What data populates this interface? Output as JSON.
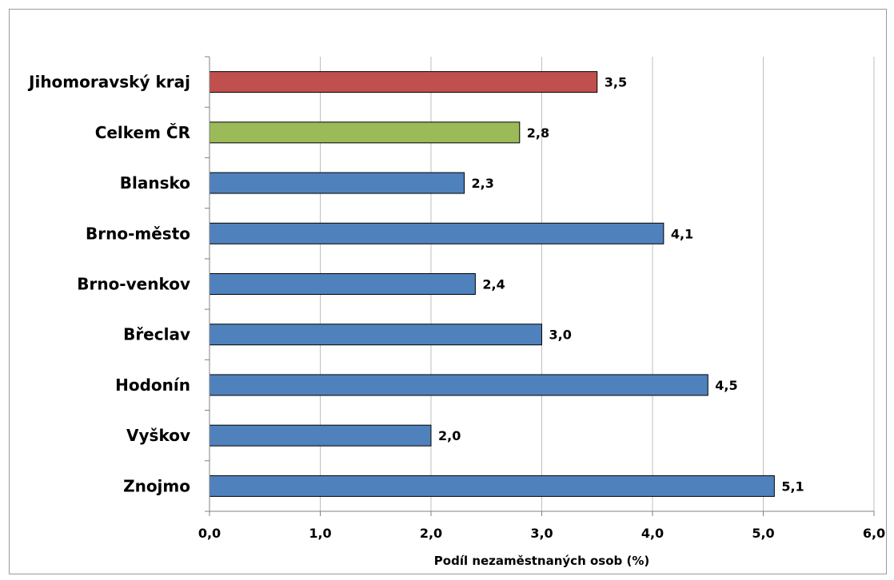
{
  "chart_data": {
    "type": "bar",
    "orientation": "horizontal",
    "categories": [
      "Jihomoravský kraj",
      "Celkem ČR",
      "Blansko",
      "Brno-město",
      "Brno-venkov",
      "Břeclav",
      "Hodonín",
      "Vyškov",
      "Znojmo"
    ],
    "values": [
      3.5,
      2.8,
      2.3,
      4.1,
      2.4,
      3.0,
      4.5,
      2.0,
      5.1
    ],
    "value_labels": [
      "3,5",
      "2,8",
      "2,3",
      "4,1",
      "2,4",
      "3,0",
      "4,5",
      "2,0",
      "5,1"
    ],
    "bar_colors": [
      "#c0504d",
      "#9bbb59",
      "#4f81bd",
      "#4f81bd",
      "#4f81bd",
      "#4f81bd",
      "#4f81bd",
      "#4f81bd",
      "#4f81bd"
    ],
    "xlabel": "Podíl nezaměstnaných osob (%)",
    "xlim": [
      0,
      6
    ],
    "x_ticks": [
      0,
      1,
      2,
      3,
      4,
      5,
      6
    ],
    "x_tick_labels": [
      "0,0",
      "1,0",
      "2,0",
      "3,0",
      "4,0",
      "5,0",
      "6,0"
    ],
    "grid": "vertical",
    "legend": "none"
  }
}
